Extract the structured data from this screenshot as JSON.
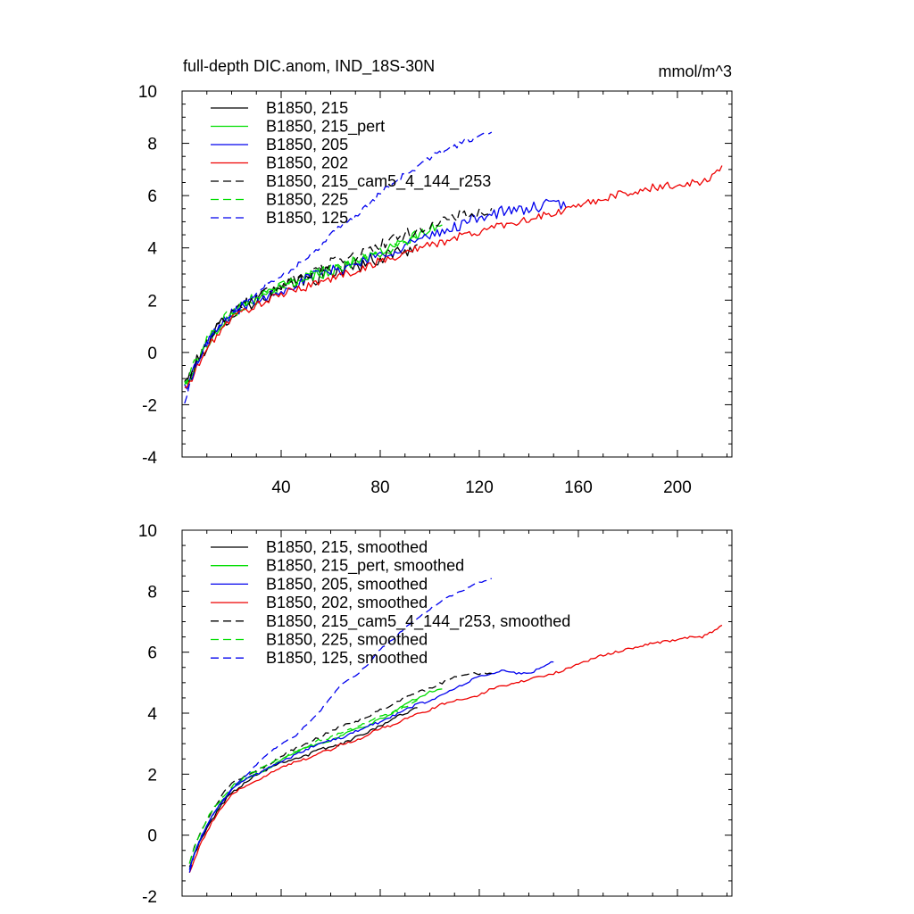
{
  "header": {
    "title": "full-depth DIC.anom, IND_18S-30N",
    "units": "mmol/m^3"
  },
  "chart_data": [
    {
      "type": "line",
      "title": "full-depth DIC.anom, IND_18S-30N",
      "units": "mmol/m^3",
      "xlabel": "",
      "ylabel": "",
      "xlim": [
        0,
        222
      ],
      "ylim": [
        -4,
        10
      ],
      "xticks": [
        40,
        80,
        120,
        160,
        200
      ],
      "yticks": [
        -4,
        -2,
        0,
        2,
        4,
        6,
        8,
        10
      ],
      "legend_position": "top-left",
      "series": [
        {
          "name": "B1850, 215",
          "color": "#000000",
          "dash": "solid",
          "x": [
            1,
            3,
            5,
            8,
            12,
            16,
            20,
            25,
            30,
            35,
            40,
            45,
            50,
            55,
            60,
            65,
            70,
            75,
            80,
            85,
            90,
            95
          ],
          "y": [
            -1.2,
            -1.0,
            -0.6,
            0.0,
            0.6,
            1.1,
            1.5,
            1.8,
            2.0,
            2.2,
            2.4,
            2.6,
            2.8,
            2.9,
            3.1,
            3.2,
            3.3,
            3.5,
            3.6,
            3.8,
            3.9,
            4.1
          ],
          "noise": 0.3
        },
        {
          "name": "B1850, 215_pert",
          "color": "#00dd00",
          "dash": "solid",
          "x": [
            1,
            3,
            5,
            8,
            12,
            16,
            20,
            25,
            30,
            35,
            40,
            45,
            50,
            55,
            60,
            65,
            70,
            75,
            80,
            85,
            90,
            95,
            100,
            105
          ],
          "y": [
            -1.3,
            -1.0,
            -0.6,
            0.0,
            0.6,
            1.1,
            1.5,
            1.8,
            2.0,
            2.3,
            2.5,
            2.7,
            2.9,
            3.0,
            3.1,
            3.3,
            3.5,
            3.6,
            3.8,
            4.0,
            4.2,
            4.5,
            4.7,
            4.8
          ],
          "noise": 0.22
        },
        {
          "name": "B1850, 205",
          "color": "#0000ee",
          "dash": "solid",
          "x": [
            1,
            3,
            5,
            8,
            12,
            16,
            20,
            25,
            30,
            35,
            40,
            45,
            50,
            55,
            60,
            65,
            70,
            75,
            80,
            85,
            90,
            95,
            100,
            105,
            110,
            115,
            120,
            125,
            130,
            135,
            140,
            145,
            150,
            155
          ],
          "y": [
            -1.3,
            -1.1,
            -0.6,
            0.0,
            0.6,
            1.1,
            1.5,
            1.8,
            2.0,
            2.2,
            2.4,
            2.6,
            2.8,
            3.0,
            3.1,
            3.2,
            3.4,
            3.6,
            3.7,
            3.9,
            4.1,
            4.3,
            4.4,
            4.6,
            4.8,
            5.0,
            5.2,
            5.3,
            5.4,
            5.4,
            5.5,
            5.6,
            5.7,
            5.6
          ],
          "noise": 0.22
        },
        {
          "name": "B1850, 202",
          "color": "#ee0000",
          "dash": "solid",
          "x": [
            1,
            3,
            5,
            8,
            12,
            16,
            20,
            25,
            30,
            35,
            40,
            45,
            50,
            55,
            60,
            65,
            70,
            75,
            80,
            85,
            90,
            95,
            100,
            105,
            110,
            115,
            120,
            125,
            130,
            140,
            150,
            160,
            170,
            180,
            190,
            200,
            205,
            210,
            215,
            218
          ],
          "y": [
            -1.4,
            -1.2,
            -0.8,
            -0.2,
            0.4,
            0.9,
            1.3,
            1.6,
            1.8,
            2.0,
            2.2,
            2.4,
            2.5,
            2.7,
            2.8,
            3.0,
            3.1,
            3.3,
            3.5,
            3.6,
            3.8,
            4.0,
            4.1,
            4.2,
            4.4,
            4.5,
            4.6,
            4.8,
            4.9,
            5.1,
            5.3,
            5.6,
            5.9,
            6.1,
            6.3,
            6.4,
            6.5,
            6.5,
            6.8,
            7.2
          ],
          "noise": 0.15
        },
        {
          "name": "B1850, 215_cam5_4_144_r253",
          "color": "#000000",
          "dash": "dashed",
          "x": [
            1,
            3,
            5,
            8,
            12,
            16,
            20,
            25,
            30,
            35,
            40,
            45,
            50,
            55,
            60,
            65,
            70,
            75,
            80,
            85,
            90,
            95,
            100,
            105,
            110,
            115,
            120,
            125
          ],
          "y": [
            -1.2,
            -1.0,
            -0.5,
            0.1,
            0.7,
            1.2,
            1.6,
            1.9,
            2.1,
            2.3,
            2.6,
            2.8,
            3.0,
            3.2,
            3.4,
            3.6,
            3.7,
            3.9,
            4.1,
            4.3,
            4.5,
            4.7,
            4.8,
            5.0,
            5.2,
            5.3,
            5.3,
            5.3
          ],
          "noise": 0.22
        },
        {
          "name": "B1850, 225",
          "color": "#00dd00",
          "dash": "dashed",
          "x": [
            1,
            3,
            5,
            8,
            12,
            16,
            20,
            25,
            30,
            35,
            40,
            45,
            50,
            55,
            60,
            65,
            70,
            75,
            80,
            85,
            90,
            95
          ],
          "y": [
            -1.2,
            -0.9,
            -0.4,
            0.2,
            0.8,
            1.2,
            1.6,
            1.9,
            2.1,
            2.3,
            2.5,
            2.7,
            2.9,
            3.1,
            3.2,
            3.4,
            3.5,
            3.7,
            3.9,
            4.0,
            4.2,
            4.4
          ],
          "noise": 0.2
        },
        {
          "name": "B1850, 125",
          "color": "#0000ee",
          "dash": "dashed",
          "x": [
            1,
            3,
            5,
            8,
            12,
            16,
            20,
            25,
            30,
            35,
            40,
            45,
            50,
            55,
            60,
            65,
            70,
            75,
            80,
            85,
            90,
            95,
            100,
            105,
            110,
            115,
            120,
            125
          ],
          "y": [
            -2.0,
            -1.3,
            -0.7,
            0.0,
            0.6,
            1.1,
            1.5,
            1.9,
            2.3,
            2.7,
            3.0,
            3.2,
            3.6,
            4.0,
            4.5,
            5.0,
            5.2,
            5.6,
            6.1,
            6.4,
            6.8,
            7.1,
            7.4,
            7.7,
            7.9,
            8.1,
            8.3,
            8.4
          ],
          "noise": 0.12
        }
      ]
    },
    {
      "type": "line",
      "title": "",
      "xlabel": "",
      "ylabel": "",
      "xlim": [
        0,
        222
      ],
      "ylim": [
        -2,
        10
      ],
      "xticks": [
        40,
        80,
        120,
        160,
        200
      ],
      "yticks": [
        -2,
        0,
        2,
        4,
        6,
        8,
        10
      ],
      "legend_position": "top-left",
      "series": [
        {
          "name": "B1850, 215, smoothed",
          "color": "#000000",
          "dash": "solid",
          "x": [
            3,
            5,
            8,
            12,
            16,
            20,
            25,
            30,
            35,
            40,
            45,
            50,
            55,
            60,
            65,
            70,
            75,
            80,
            85,
            90,
            95
          ],
          "y": [
            -1.0,
            -0.6,
            -0.1,
            0.5,
            1.0,
            1.4,
            1.7,
            2.0,
            2.2,
            2.4,
            2.5,
            2.6,
            2.8,
            2.9,
            3.0,
            3.2,
            3.4,
            3.6,
            3.8,
            4.0,
            4.2
          ],
          "noise": 0.05
        },
        {
          "name": "B1850, 215_pert, smoothed",
          "color": "#00dd00",
          "dash": "solid",
          "x": [
            3,
            5,
            8,
            12,
            16,
            20,
            25,
            30,
            35,
            40,
            45,
            50,
            55,
            60,
            65,
            70,
            75,
            80,
            85,
            90,
            95,
            100,
            105
          ],
          "y": [
            -1.1,
            -0.6,
            0.0,
            0.6,
            1.1,
            1.5,
            1.8,
            2.0,
            2.2,
            2.5,
            2.7,
            2.9,
            3.0,
            3.1,
            3.3,
            3.5,
            3.6,
            3.8,
            4.0,
            4.3,
            4.5,
            4.7,
            4.8
          ],
          "noise": 0.04
        },
        {
          "name": "B1850, 205, smoothed",
          "color": "#0000ee",
          "dash": "solid",
          "x": [
            3,
            5,
            8,
            12,
            16,
            20,
            25,
            30,
            35,
            40,
            45,
            50,
            55,
            60,
            65,
            70,
            75,
            80,
            85,
            90,
            95,
            100,
            105,
            110,
            115,
            120,
            125,
            130,
            135,
            140,
            145,
            150
          ],
          "y": [
            -1.1,
            -0.6,
            0.0,
            0.6,
            1.1,
            1.5,
            1.8,
            2.0,
            2.2,
            2.4,
            2.6,
            2.8,
            3.0,
            3.1,
            3.2,
            3.4,
            3.6,
            3.7,
            3.9,
            4.1,
            4.3,
            4.4,
            4.6,
            4.8,
            5.0,
            5.2,
            5.3,
            5.4,
            5.3,
            5.3,
            5.5,
            5.7
          ],
          "noise": 0.04
        },
        {
          "name": "B1850, 202, smoothed",
          "color": "#ee0000",
          "dash": "solid",
          "x": [
            3,
            5,
            8,
            12,
            16,
            20,
            25,
            30,
            35,
            40,
            45,
            50,
            55,
            60,
            65,
            70,
            75,
            80,
            85,
            90,
            95,
            100,
            105,
            110,
            115,
            120,
            125,
            130,
            140,
            150,
            160,
            170,
            180,
            190,
            200,
            205,
            210,
            215,
            218
          ],
          "y": [
            -1.2,
            -0.8,
            -0.2,
            0.4,
            0.9,
            1.3,
            1.6,
            1.8,
            2.0,
            2.2,
            2.4,
            2.5,
            2.7,
            2.8,
            3.0,
            3.1,
            3.3,
            3.5,
            3.6,
            3.8,
            4.0,
            4.1,
            4.3,
            4.4,
            4.5,
            4.6,
            4.8,
            4.9,
            5.1,
            5.3,
            5.6,
            5.9,
            6.1,
            6.3,
            6.4,
            6.5,
            6.5,
            6.7,
            6.9
          ],
          "noise": 0.04
        },
        {
          "name": "B1850, 215_cam5_4_144_r253, smoothed",
          "color": "#000000",
          "dash": "dashed",
          "x": [
            3,
            5,
            8,
            12,
            16,
            20,
            25,
            30,
            35,
            40,
            45,
            50,
            55,
            60,
            65,
            70,
            75,
            80,
            85,
            90,
            95,
            100,
            105,
            110,
            115,
            120,
            125
          ],
          "y": [
            -0.9,
            -0.4,
            0.2,
            0.8,
            1.3,
            1.7,
            1.9,
            2.1,
            2.3,
            2.6,
            2.8,
            3.0,
            3.2,
            3.4,
            3.6,
            3.7,
            3.9,
            4.1,
            4.3,
            4.5,
            4.7,
            4.8,
            5.0,
            5.2,
            5.3,
            5.3,
            5.3
          ],
          "noise": 0.04
        },
        {
          "name": "B1850, 225, smoothed",
          "color": "#00dd00",
          "dash": "dashed",
          "x": [
            3,
            5,
            8,
            12,
            16,
            20,
            25,
            30,
            35,
            40,
            45,
            50,
            55,
            60,
            65,
            70,
            75,
            80,
            85,
            90,
            95
          ],
          "y": [
            -0.9,
            -0.4,
            0.2,
            0.8,
            1.2,
            1.6,
            1.9,
            2.1,
            2.3,
            2.5,
            2.7,
            2.9,
            3.1,
            3.2,
            3.4,
            3.5,
            3.7,
            3.9,
            4.0,
            4.2,
            4.4
          ],
          "noise": 0.04
        },
        {
          "name": "B1850, 125, smoothed",
          "color": "#0000ee",
          "dash": "dashed",
          "x": [
            3,
            5,
            8,
            12,
            16,
            20,
            25,
            30,
            35,
            40,
            45,
            50,
            55,
            60,
            65,
            70,
            75,
            80,
            85,
            90,
            95,
            100,
            105,
            110,
            115,
            120,
            125
          ],
          "y": [
            -1.2,
            -0.6,
            0.0,
            0.6,
            1.1,
            1.5,
            1.9,
            2.3,
            2.7,
            3.0,
            3.2,
            3.6,
            4.0,
            4.5,
            5.0,
            5.2,
            5.6,
            6.1,
            6.4,
            6.8,
            7.1,
            7.4,
            7.7,
            7.9,
            8.1,
            8.3,
            8.4
          ],
          "noise": 0.03
        }
      ]
    }
  ]
}
